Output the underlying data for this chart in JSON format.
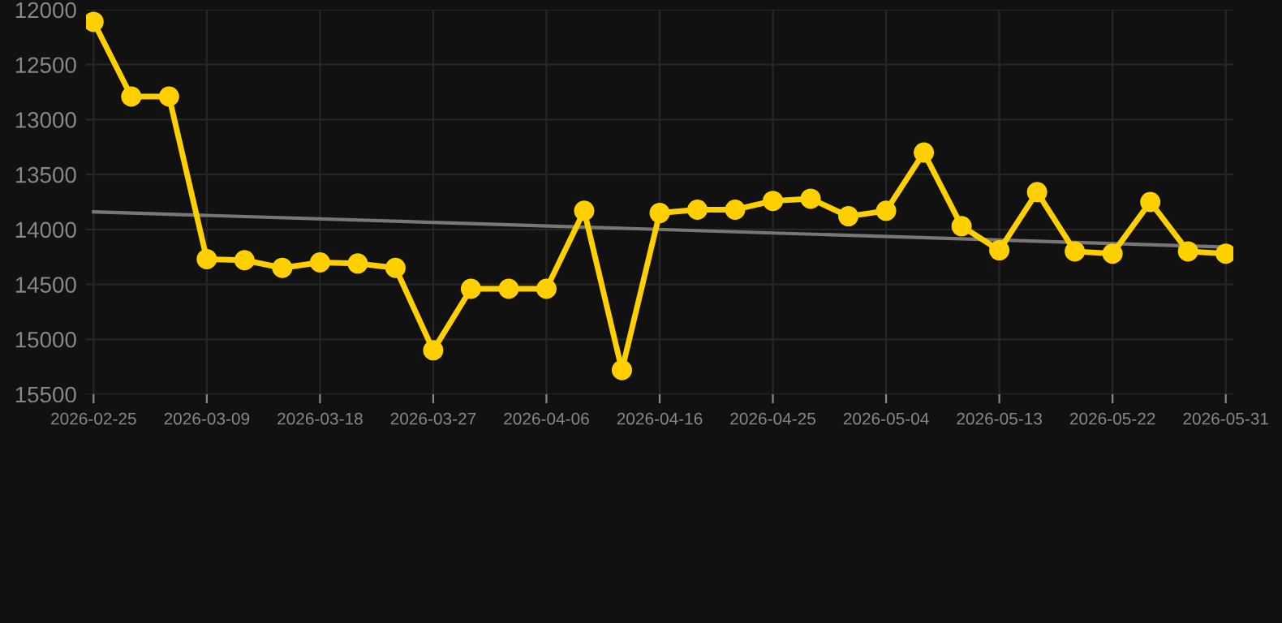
{
  "chart_data": {
    "type": "line",
    "categories": [
      "2026-02-25",
      null,
      null,
      "2026-03-09",
      null,
      null,
      "2026-03-18",
      null,
      null,
      "2026-03-27",
      null,
      null,
      "2026-04-06",
      null,
      null,
      "2026-04-16",
      null,
      null,
      "2026-04-25",
      null,
      null,
      "2026-05-04",
      null,
      null,
      "2026-05-13",
      null,
      null,
      "2026-05-22",
      null,
      null,
      "2026-05-31"
    ],
    "series": [
      {
        "color": "#ffd000",
        "marker": "circle",
        "values": [
          12110,
          12790,
          12790,
          14270,
          14280,
          14350,
          14300,
          14310,
          14350,
          15100,
          14540,
          14540,
          14540,
          13830,
          15280,
          13850,
          13820,
          13820,
          13740,
          13720,
          13880,
          13830,
          13300,
          13970,
          14190,
          13660,
          14200,
          14220,
          13750,
          14200,
          14220
        ]
      },
      {
        "type": "line",
        "color": "#777777",
        "marker": "none",
        "values": [
          13840,
          null,
          null,
          null,
          null,
          null,
          null,
          null,
          null,
          null,
          null,
          null,
          null,
          null,
          null,
          null,
          null,
          null,
          null,
          null,
          null,
          null,
          null,
          null,
          null,
          null,
          null,
          null,
          null,
          null,
          14160
        ]
      }
    ],
    "ylim": [
      15500,
      12000
    ],
    "yticks": [
      12000,
      12500,
      13000,
      13500,
      14000,
      14500,
      15000,
      15500
    ],
    "grid": true
  }
}
